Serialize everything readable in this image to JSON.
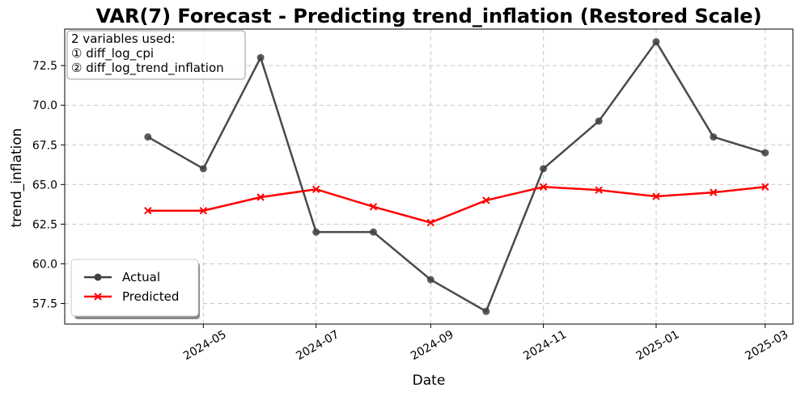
{
  "chart_data": {
    "type": "line",
    "title": "VAR(7) Forecast - Predicting trend_inflation (Restored Scale)",
    "xlabel": "Date",
    "ylabel": "trend_inflation",
    "x": [
      "2024-04-01",
      "2024-05-01",
      "2024-06-01",
      "2024-07-01",
      "2024-08-01",
      "2024-09-01",
      "2024-10-01",
      "2024-11-01",
      "2024-12-01",
      "2025-01-01",
      "2025-02-01",
      "2025-03-01"
    ],
    "x_ticks": [
      "2024-05",
      "2024-07",
      "2024-09",
      "2024-11",
      "2025-01",
      "2025-03"
    ],
    "ylim": [
      56.2,
      74.8
    ],
    "y_ticks": [
      57.5,
      60.0,
      62.5,
      65.0,
      67.5,
      70.0,
      72.5
    ],
    "grid": true,
    "legend_position": "lower-left",
    "series": [
      {
        "name": "Actual",
        "color": "#404040",
        "marker": "circle",
        "values": [
          68,
          66,
          73,
          62,
          62,
          59,
          57,
          66,
          69,
          74,
          68,
          67
        ]
      },
      {
        "name": "Predicted",
        "color": "#ff0000",
        "marker": "x",
        "values": [
          63.35,
          63.35,
          64.2,
          64.7,
          63.6,
          62.6,
          64.0,
          64.85,
          64.65,
          64.25,
          64.5,
          64.85
        ]
      }
    ],
    "annotation": {
      "heading": "2 variables used:",
      "lines": [
        "① diff_log_cpi",
        "② diff_log_trend_inflation"
      ]
    }
  }
}
